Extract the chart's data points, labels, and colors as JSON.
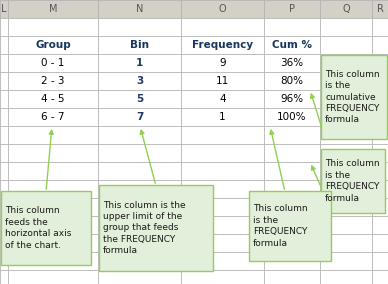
{
  "bg_color": "#d4d0c8",
  "grid_color": "#b0b0b0",
  "col_header_bg": "#d4d0c8",
  "cell_bg": "#ffffff",
  "col_letters": [
    "L",
    "M",
    "N",
    "O",
    "P",
    "Q",
    "R"
  ],
  "table_headers": [
    "Group",
    "Bin",
    "Frequency",
    "Cum %"
  ],
  "rows": [
    [
      "0 - 1",
      "1",
      "9",
      "36%"
    ],
    [
      "2 - 3",
      "3",
      "11",
      "80%"
    ],
    [
      "4 - 5",
      "5",
      "4",
      "96%"
    ],
    [
      "6 - 7",
      "7",
      "1",
      "100%"
    ]
  ],
  "callout_fill": "#e2efda",
  "callout_edge": "#92d050",
  "callout_text_color": "#1a1a1a",
  "bin_color": "#1f3864",
  "header_text_color": "#17375e"
}
